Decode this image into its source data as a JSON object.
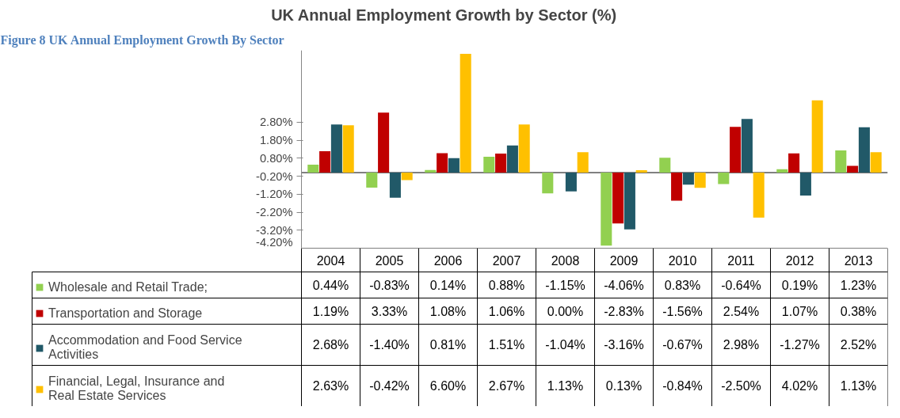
{
  "chart_data": {
    "type": "bar",
    "title": "UK Annual Employment Growth by Sector (%)",
    "annotations": [
      "Figure 8 UK Annual Employment Growth By Sector"
    ],
    "categories": [
      "2004",
      "2005",
      "2006",
      "2007",
      "2008",
      "2009",
      "2010",
      "2011",
      "2012",
      "2013"
    ],
    "series": [
      {
        "name": "Wholesale and Retail Trade;",
        "color": "#92d050",
        "values": [
          0.44,
          -0.83,
          0.14,
          0.88,
          -1.15,
          -4.06,
          0.83,
          -0.64,
          0.19,
          1.23
        ],
        "value_labels": [
          "0.44%",
          "-0.83%",
          "0.14%",
          "0.88%",
          "-1.15%",
          "-4.06%",
          "0.83%",
          "-0.64%",
          "0.19%",
          "1.23%"
        ]
      },
      {
        "name": "Transportation and Storage",
        "color": "#c00000",
        "values": [
          1.19,
          3.33,
          1.08,
          1.06,
          0.0,
          -2.83,
          -1.56,
          2.54,
          1.07,
          0.38
        ],
        "value_labels": [
          "1.19%",
          "3.33%",
          "1.08%",
          "1.06%",
          "0.00%",
          "-2.83%",
          "-1.56%",
          "2.54%",
          "1.07%",
          "0.38%"
        ]
      },
      {
        "name": "Accommodation and Food Service Activities",
        "color": "#215968",
        "values": [
          2.68,
          -1.4,
          0.81,
          1.51,
          -1.04,
          -3.16,
          -0.67,
          2.98,
          -1.27,
          2.52
        ],
        "value_labels": [
          "2.68%",
          "-1.40%",
          "0.81%",
          "1.51%",
          "-1.04%",
          "-3.16%",
          "-0.67%",
          "2.98%",
          "-1.27%",
          "2.52%"
        ]
      },
      {
        "name": "Financial, Legal, Insurance and Real Estate Services",
        "color": "#ffc000",
        "values": [
          2.63,
          -0.42,
          6.6,
          2.67,
          1.13,
          0.13,
          -0.84,
          -2.5,
          4.02,
          1.13
        ],
        "value_labels": [
          "2.63%",
          "-0.42%",
          "6.60%",
          "2.67%",
          "1.13%",
          "0.13%",
          "-0.84%",
          "-2.50%",
          "4.02%",
          "1.13%"
        ]
      }
    ],
    "ylim": [
      -4.2,
      6.8
    ],
    "yticks": [
      {
        "value": -4.2,
        "label": "-4.20%"
      },
      {
        "value": -3.2,
        "label": "-3.20%"
      },
      {
        "value": -2.2,
        "label": "-2.20%"
      },
      {
        "value": -1.2,
        "label": "-1.20%"
      },
      {
        "value": -0.2,
        "label": "-0.20%"
      },
      {
        "value": 0.8,
        "label": "0.80%"
      },
      {
        "value": 1.8,
        "label": "1.80%"
      },
      {
        "value": 2.8,
        "label": "2.80%"
      }
    ],
    "grid": false,
    "legend": "bottom"
  }
}
